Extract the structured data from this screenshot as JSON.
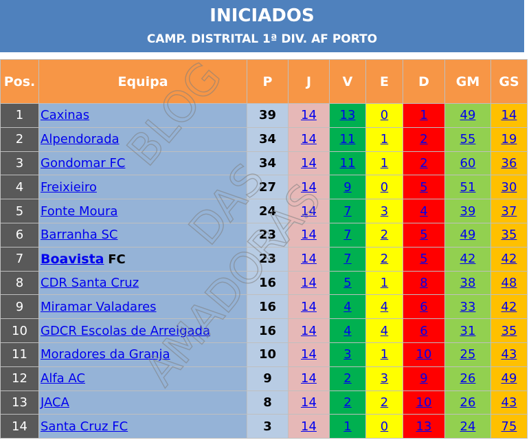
{
  "header": {
    "title": "INICIADOS",
    "subtitle": "CAMP. DISTRITAL 1ª DIV. AF PORTO"
  },
  "columns": {
    "pos": "Pos.",
    "team": "Equipa",
    "p": "P",
    "j": "J",
    "v": "V",
    "e": "E",
    "d": "D",
    "gm": "GM",
    "gs": "GS"
  },
  "rows": [
    {
      "pos": "1",
      "team": "Caxinas",
      "p": "39",
      "j": "14",
      "v": "13",
      "e": "0",
      "d": "1",
      "gm": "49",
      "gs": "14"
    },
    {
      "pos": "2",
      "team": "Alpendorada",
      "p": "34",
      "j": "14",
      "v": "11",
      "e": "1",
      "d": "2",
      "gm": "55",
      "gs": "19"
    },
    {
      "pos": "3",
      "team": "Gondomar FC",
      "p": "34",
      "j": "14",
      "v": "11",
      "e": "1",
      "d": "2",
      "gm": "60",
      "gs": "36"
    },
    {
      "pos": "4",
      "team": "Freixieiro",
      "p": "27",
      "j": "14",
      "v": "9",
      "e": "0",
      "d": "5",
      "gm": "51",
      "gs": "30"
    },
    {
      "pos": "5",
      "team": "Fonte Moura",
      "p": "24",
      "j": "14",
      "v": "7",
      "e": "3",
      "d": "4",
      "gm": "39",
      "gs": "37"
    },
    {
      "pos": "6",
      "team": "Barranha SC",
      "p": "23",
      "j": "14",
      "v": "7",
      "e": "2",
      "d": "5",
      "gm": "49",
      "gs": "35"
    },
    {
      "pos": "7",
      "team": "Boavista",
      "team_suffix": "FC",
      "p": "23",
      "j": "14",
      "v": "7",
      "e": "2",
      "d": "5",
      "gm": "42",
      "gs": "42"
    },
    {
      "pos": "8",
      "team": "CDR Santa Cruz",
      "p": "16",
      "j": "14",
      "v": "5",
      "e": "1",
      "d": "8",
      "gm": "38",
      "gs": "48"
    },
    {
      "pos": "9",
      "team": "Miramar Valadares",
      "p": "16",
      "j": "14",
      "v": "4",
      "e": "4",
      "d": "6",
      "gm": "33",
      "gs": "42"
    },
    {
      "pos": "10",
      "team": "GDCR Escolas de Arreigada",
      "p": "16",
      "j": "14",
      "v": "4",
      "e": "4",
      "d": "6",
      "gm": "31",
      "gs": "35"
    },
    {
      "pos": "11",
      "team": "Moradores da Granja",
      "p": "10",
      "j": "14",
      "v": "3",
      "e": "1",
      "d": "10",
      "gm": "25",
      "gs": "43"
    },
    {
      "pos": "12",
      "team": "Alfa AC",
      "p": "9",
      "j": "14",
      "v": "2",
      "e": "3",
      "d": "9",
      "gm": "26",
      "gs": "49"
    },
    {
      "pos": "13",
      "team": "JACA",
      "p": "8",
      "j": "14",
      "v": "2",
      "e": "2",
      "d": "10",
      "gm": "26",
      "gs": "43"
    },
    {
      "pos": "14",
      "team": "Santa Cruz FC",
      "p": "3",
      "j": "14",
      "v": "1",
      "e": "0",
      "d": "13",
      "gm": "24",
      "gs": "75"
    }
  ],
  "watermark": {
    "line1": "BLOG",
    "line2": "DAS",
    "line3": "AMADORAS"
  },
  "colors": {
    "header_bg": "#4f81bd",
    "column_header_bg": "#f79646",
    "pos_bg": "#595959",
    "team_bg": "#95b3d7",
    "points_bg": "#b8cce4",
    "played_bg": "#e6b8b7",
    "wins_bg": "#00b050",
    "draws_bg": "#ffff00",
    "losses_bg": "#ff0000",
    "goals_for_bg": "#92d050",
    "goals_against_bg": "#ffc000",
    "link": "#0000ee"
  }
}
